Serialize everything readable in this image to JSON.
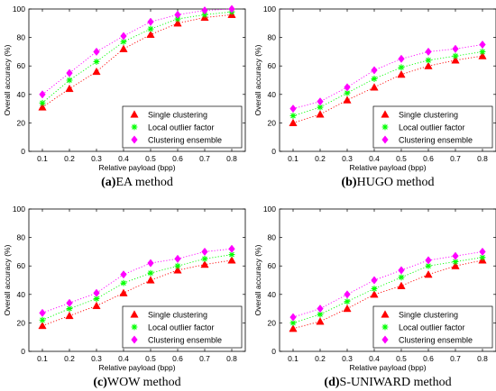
{
  "chart_data": [
    {
      "type": "line",
      "caption_letter": "(a)",
      "caption_text": "EA method",
      "xlabel": "Relative payload (bpp)",
      "ylabel": "Overall accuracy (%)",
      "x": [
        0.1,
        0.2,
        0.3,
        0.4,
        0.5,
        0.6,
        0.7,
        0.8
      ],
      "x_ticks": [
        "0.1",
        "0.2",
        "0.3",
        "0.4",
        "0.5",
        "0.6",
        "0.7",
        "0.8"
      ],
      "ylim": [
        0,
        100
      ],
      "y_ticks": [
        "0",
        "20",
        "40",
        "60",
        "80",
        "100"
      ],
      "xlim": [
        0.05,
        0.85
      ],
      "legend_position": "bottom-right",
      "series": [
        {
          "name": "Single clustering",
          "marker": "triangle",
          "color": "#ff0000",
          "values": [
            31,
            44,
            56,
            72,
            82,
            90,
            94,
            96
          ]
        },
        {
          "name": "Local outlier factor",
          "marker": "asterisk",
          "color": "#00ff00",
          "values": [
            34,
            50,
            63,
            77,
            86,
            93,
            96,
            98
          ]
        },
        {
          "name": "Clustering ensemble",
          "marker": "diamond",
          "color": "#ff00ff",
          "values": [
            40,
            55,
            70,
            81,
            91,
            96,
            99,
            100
          ]
        }
      ]
    },
    {
      "type": "line",
      "caption_letter": "(b)",
      "caption_text": "HUGO method",
      "xlabel": "Relative payload (bpp)",
      "ylabel": "Overall accuracy (%)",
      "x": [
        0.1,
        0.2,
        0.3,
        0.4,
        0.5,
        0.6,
        0.7,
        0.8
      ],
      "x_ticks": [
        "0.1",
        "0.2",
        "0.3",
        "0.4",
        "0.5",
        "0.6",
        "0.7",
        "0.8"
      ],
      "ylim": [
        0,
        100
      ],
      "y_ticks": [
        "0",
        "20",
        "40",
        "60",
        "80",
        "100"
      ],
      "xlim": [
        0.05,
        0.85
      ],
      "legend_position": "bottom-right",
      "series": [
        {
          "name": "Single clustering",
          "marker": "triangle",
          "color": "#ff0000",
          "values": [
            20,
            26,
            36,
            45,
            54,
            60,
            64,
            67
          ]
        },
        {
          "name": "Local outlier factor",
          "marker": "asterisk",
          "color": "#00ff00",
          "values": [
            25,
            31,
            41,
            51,
            59,
            64,
            67,
            70
          ]
        },
        {
          "name": "Clustering ensemble",
          "marker": "diamond",
          "color": "#ff00ff",
          "values": [
            30,
            35,
            45,
            57,
            65,
            70,
            72,
            75
          ]
        }
      ]
    },
    {
      "type": "line",
      "caption_letter": "(c)",
      "caption_text": "WOW method",
      "xlabel": "Relative payload (bpp)",
      "ylabel": "Overall accuracy (%)",
      "x": [
        0.1,
        0.2,
        0.3,
        0.4,
        0.5,
        0.6,
        0.7,
        0.8
      ],
      "x_ticks": [
        "0.1",
        "0.2",
        "0.3",
        "0.4",
        "0.5",
        "0.6",
        "0.7",
        "0.8"
      ],
      "ylim": [
        0,
        100
      ],
      "y_ticks": [
        "0",
        "20",
        "40",
        "60",
        "80",
        "100"
      ],
      "xlim": [
        0.05,
        0.85
      ],
      "legend_position": "bottom-right",
      "series": [
        {
          "name": "Single clustering",
          "marker": "triangle",
          "color": "#ff0000",
          "values": [
            18,
            25,
            32,
            41,
            50,
            57,
            61,
            64
          ]
        },
        {
          "name": "Local outlier factor",
          "marker": "asterisk",
          "color": "#00ff00",
          "values": [
            22,
            30,
            37,
            48,
            55,
            60,
            65,
            68
          ]
        },
        {
          "name": "Clustering ensemble",
          "marker": "diamond",
          "color": "#ff00ff",
          "values": [
            27,
            34,
            41,
            54,
            62,
            65,
            70,
            72
          ]
        }
      ]
    },
    {
      "type": "line",
      "caption_letter": "(d)",
      "caption_text": "S-UNIWARD method",
      "xlabel": "Relative payload (bpp)",
      "ylabel": "Overall accuracy (%)",
      "x": [
        0.1,
        0.2,
        0.3,
        0.4,
        0.5,
        0.6,
        0.7,
        0.8
      ],
      "x_ticks": [
        "0.1",
        "0.2",
        "0.3",
        "0.4",
        "0.5",
        "0.6",
        "0.7",
        "0.8"
      ],
      "ylim": [
        0,
        100
      ],
      "y_ticks": [
        "0",
        "20",
        "40",
        "60",
        "80",
        "100"
      ],
      "xlim": [
        0.05,
        0.85
      ],
      "legend_position": "bottom-right",
      "series": [
        {
          "name": "Single clustering",
          "marker": "triangle",
          "color": "#ff0000",
          "values": [
            16,
            21,
            30,
            40,
            46,
            54,
            60,
            64
          ]
        },
        {
          "name": "Local outlier factor",
          "marker": "asterisk",
          "color": "#00ff00",
          "values": [
            20,
            26,
            35,
            44,
            52,
            60,
            63,
            66
          ]
        },
        {
          "name": "Clustering ensemble",
          "marker": "diamond",
          "color": "#ff00ff",
          "values": [
            24,
            30,
            40,
            50,
            57,
            64,
            67,
            70
          ]
        }
      ]
    }
  ]
}
